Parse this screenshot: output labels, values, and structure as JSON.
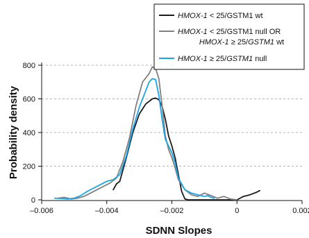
{
  "chart_data": {
    "type": "line",
    "xlabel": "SDNN Slopes",
    "ylabel": "Probability density",
    "xlim": [
      -0.006,
      0.002
    ],
    "ylim": [
      0,
      800
    ],
    "x_ticks": [
      -0.006,
      -0.004,
      -0.002,
      0,
      0.002
    ],
    "x_tick_labels": [
      "–0.006",
      "–0.004",
      "–0.002",
      "0",
      "0.002"
    ],
    "y_ticks": [
      0,
      200,
      400,
      600,
      800
    ],
    "y_tick_labels": [
      "0",
      "200",
      "400",
      "600",
      "800"
    ],
    "grid": "horizontal dashed",
    "legend_position": "top-right",
    "series": [
      {
        "name": "HMOX-1 < 25/GSTM1 wt",
        "legend_parts": [
          [
            "HMOX-1",
            true
          ],
          [
            " < 25/GSTM1 wt",
            false
          ]
        ],
        "color": "#1a1a1a",
        "x": [
          -0.0038,
          -0.0037,
          -0.0036,
          -0.0034,
          -0.0032,
          -0.003,
          -0.0028,
          -0.0026,
          -0.0025,
          -0.0024,
          -0.0023,
          -0.0022,
          -0.0021,
          -0.002,
          -0.0019,
          -0.0018,
          -0.0017,
          -0.0016,
          -0.0015,
          -0.0014,
          -0.0012,
          -0.001,
          -0.0008,
          -0.0006,
          -0.0004,
          -0.0002,
          0.0,
          0.0002,
          0.0004,
          0.0006,
          0.0007
        ],
        "y": [
          60,
          95,
          110,
          250,
          400,
          510,
          570,
          600,
          605,
          595,
          555,
          480,
          380,
          320,
          250,
          150,
          50,
          5,
          0,
          0,
          0,
          0,
          0,
          0,
          0,
          0,
          0,
          20,
          30,
          45,
          55
        ]
      },
      {
        "name": "HMOX-1 < 25/GSTM1 null OR HMOX-1 ≥ 25/GSTM1 wt",
        "legend_parts": [
          [
            "HMOX-1",
            true
          ],
          [
            " < 25/GSTM1 null OR",
            false
          ]
        ],
        "legend_parts_2": [
          [
            "HMOX-1",
            true
          ],
          [
            " ≥ 25/",
            false
          ],
          [
            "GSTM1",
            true
          ],
          [
            " wt",
            false
          ]
        ],
        "color": "#808080",
        "x": [
          -0.0055,
          -0.0053,
          -0.0051,
          -0.0049,
          -0.0047,
          -0.0045,
          -0.0043,
          -0.0041,
          -0.0039,
          -0.0037,
          -0.0035,
          -0.0033,
          -0.0031,
          -0.0029,
          -0.0027,
          -0.0026,
          -0.0025,
          -0.0024,
          -0.0023,
          -0.0022,
          -0.0021,
          -0.002,
          -0.0019,
          -0.0018,
          -0.0016,
          -0.0014,
          -0.0012,
          -0.001,
          -0.0008,
          -0.0006,
          -0.0004,
          -0.0002,
          0.0
        ],
        "y": [
          10,
          15,
          5,
          10,
          20,
          40,
          60,
          80,
          100,
          130,
          230,
          370,
          560,
          700,
          750,
          790,
          780,
          720,
          560,
          380,
          300,
          250,
          190,
          120,
          60,
          30,
          20,
          40,
          25,
          10,
          20,
          5,
          0
        ]
      },
      {
        "name": "HMOX-1 ≥ 25/GSTM1 null",
        "legend_parts": [
          [
            "HMOX-1",
            true
          ],
          [
            " ≥ 25/",
            false
          ],
          [
            "GSTM1",
            true
          ],
          [
            " null",
            false
          ]
        ],
        "color": "#1aa3e8",
        "x": [
          -0.0056,
          -0.0054,
          -0.0052,
          -0.005,
          -0.0048,
          -0.0046,
          -0.0044,
          -0.0042,
          -0.004,
          -0.0038,
          -0.0036,
          -0.0034,
          -0.0032,
          -0.003,
          -0.0028,
          -0.0027,
          -0.0026,
          -0.0025,
          -0.0024,
          -0.0023,
          -0.0022,
          -0.0021,
          -0.002,
          -0.0019,
          -0.0018,
          -0.0016,
          -0.0014,
          -0.0012,
          -0.001,
          -0.0009,
          -0.0008,
          -0.0007
        ],
        "y": [
          10,
          8,
          5,
          10,
          25,
          50,
          70,
          90,
          110,
          120,
          150,
          260,
          420,
          550,
          650,
          700,
          720,
          715,
          620,
          480,
          360,
          320,
          280,
          220,
          130,
          60,
          40,
          30,
          20,
          25,
          15,
          10
        ]
      }
    ]
  }
}
